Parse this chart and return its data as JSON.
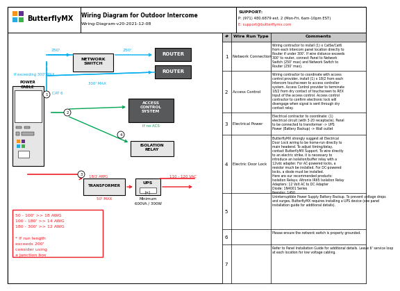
{
  "title": "Wiring Diagram for Outdoor Intercome",
  "subtitle": "Wiring-Diagram-v20-2021-12-08",
  "logo_text": "ButterflyMX",
  "bg_color": "#ffffff",
  "cyan_color": "#00aeef",
  "green_color": "#00a651",
  "red_color": "#ed1c24",
  "dark_gray": "#58595b",
  "box_fill": "#e6e6e6",
  "table_header_fill": "#c8c8c8",
  "wire_run_types": [
    "Network Connection",
    "Access Control",
    "Electrical Power",
    "Electric Door Lock",
    "",
    "",
    ""
  ],
  "row_nums": [
    "1",
    "2",
    "3",
    "4",
    "5",
    "6",
    "7"
  ],
  "comments": [
    "Wiring contractor to install (1) x CatSe/Cat6\nfrom each Intercom panel location directly to\nRouter if under 300'. If wire distance exceeds\n300' to router, connect Panel to Network\nSwitch (250' max) and Network Switch to\nRouter (250' max).",
    "Wiring contractor to coordinate with access\ncontrol provider, install (1) x 18/2 from each\nIntercom touchscreen to access controller\nsystem. Access Control provider to terminate\n18/2 from dry contact of touchscreen to REX\nInput of the access control. Access control\ncontractor to confirm electronic lock will\ndisengage when signal is sent through dry\ncontact relay.",
    "Electrical contractor to coordinate: (1)\nelectrical circuit (with 3-20 receptacle). Panel\nto be connected to transformer -> UPS\nPower (Battery Backup) -> Wall outlet",
    "ButterflyMX strongly suggest all Electrical\nDoor Lock wiring to be home-run directly to\nmain headend. To adjust timing/delay,\ncontact ButterflyMX Support. To wire directly\nto an electric strike, it is necessary to\nintroduce an isolation/buffer relay with a\n12vdc adapter. For AC-powered locks, a\nresistor much be installed. For DC-powered\nlocks, a diode must be installed.\nHere are our recommended products:\nIsolation Relays: Altronix IR65 Isolation Relay\nAdapters: 12 Volt AC to DC Adapter\nDiode: 1N4001 Series\nResistor: 1450",
    "Uninterruptible Power Supply Battery Backup. To prevent voltage drops\nand surges, ButterflyMX requires installing a UPS device (see panel\ninstallation guide for additional details).",
    "Please ensure the network switch is properly grounded.",
    "Refer to Panel Installation Guide for additional details. Leave 6' service loop\nat each location for low voltage cabling."
  ],
  "awg_lines": [
    "50 - 100' >> 18 AWG",
    "100 - 180' >> 14 AWG",
    "180 - 300' >> 12 AWG",
    "",
    "* If run length",
    "exceeds 200'",
    "consider using",
    "a junction box"
  ]
}
